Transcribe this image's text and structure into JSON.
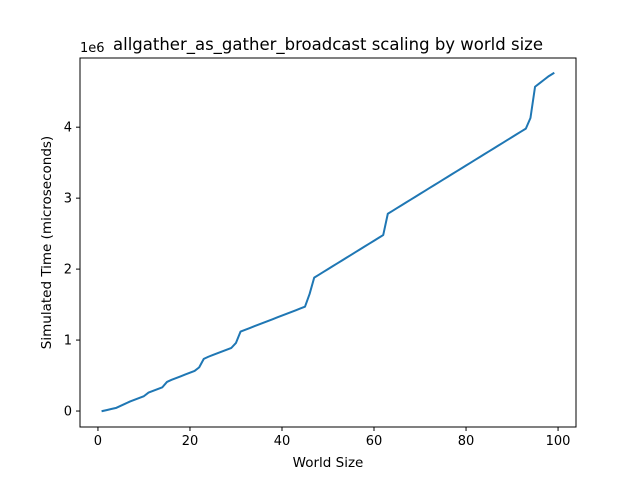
{
  "chart_data": {
    "type": "line",
    "title": "allgather_as_gather_broadcast scaling by world size",
    "xlabel": "World Size",
    "ylabel": "Simulated Time (microseconds)",
    "y_offset_label": "1e6",
    "y_scale": 1000000,
    "xlim": [
      -3.9,
      103.9
    ],
    "ylim": [
      -225000,
      4975000
    ],
    "x_ticks": [
      0,
      20,
      40,
      60,
      80,
      100
    ],
    "y_ticks": [
      0,
      1,
      2,
      3,
      4
    ],
    "grid": false,
    "legend": "none",
    "colors": {
      "line": "#1f77b4",
      "axis": "#000000",
      "background": "#ffffff"
    },
    "series": [
      {
        "x": [
          1,
          2,
          3,
          4,
          5,
          6,
          7,
          8,
          9,
          10,
          11,
          12,
          13,
          14,
          15,
          16,
          17,
          18,
          19,
          20,
          21,
          22,
          23,
          24,
          25,
          26,
          27,
          28,
          29,
          30,
          31,
          32,
          33,
          34,
          35,
          36,
          37,
          38,
          39,
          40,
          41,
          42,
          43,
          44,
          45,
          46,
          47,
          48,
          49,
          50,
          51,
          52,
          53,
          54,
          55,
          56,
          57,
          58,
          59,
          60,
          61,
          62,
          63,
          64,
          65,
          66,
          67,
          68,
          69,
          70,
          71,
          72,
          73,
          74,
          75,
          76,
          77,
          78,
          79,
          80,
          81,
          82,
          83,
          84,
          85,
          86,
          87,
          88,
          89,
          90,
          91,
          92,
          93,
          94,
          95,
          96,
          97,
          98,
          99
        ],
        "y": [
          0,
          15000,
          30000,
          45000,
          75000,
          105000,
          135000,
          160000,
          185000,
          210000,
          260000,
          285000,
          310000,
          335000,
          410000,
          440000,
          465000,
          490000,
          515000,
          540000,
          565000,
          615000,
          735000,
          765000,
          790000,
          815000,
          840000,
          865000,
          890000,
          960000,
          1120000,
          1145000,
          1170000,
          1195000,
          1220000,
          1245000,
          1270000,
          1295000,
          1320000,
          1345000,
          1370000,
          1395000,
          1420000,
          1445000,
          1470000,
          1650000,
          1880000,
          1920000,
          1960000,
          2000000,
          2040000,
          2080000,
          2120000,
          2160000,
          2200000,
          2240000,
          2280000,
          2320000,
          2360000,
          2400000,
          2440000,
          2480000,
          2780000,
          2820000,
          2860000,
          2900000,
          2940000,
          2980000,
          3020000,
          3060000,
          3100000,
          3140000,
          3180000,
          3220000,
          3260000,
          3300000,
          3340000,
          3380000,
          3420000,
          3460000,
          3500000,
          3540000,
          3580000,
          3620000,
          3660000,
          3700000,
          3740000,
          3780000,
          3820000,
          3860000,
          3900000,
          3940000,
          3980000,
          4130000,
          4570000,
          4620000,
          4670000,
          4720000,
          4760000
        ]
      }
    ]
  }
}
